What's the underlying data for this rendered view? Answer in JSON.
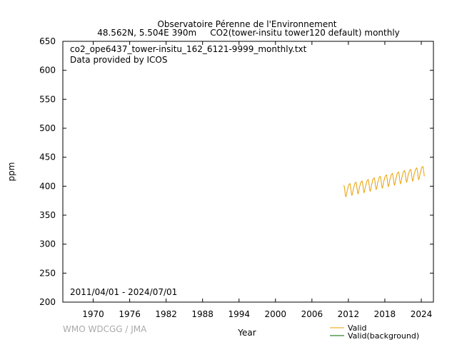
{
  "chart_data": {
    "type": "line",
    "title": "Observatoire Pérenne de l'Environnement",
    "subtitle": "48.562N, 5.504E 390m     CO2(tower-insitu tower120 default) monthly",
    "annotations": [
      "co2_ope6437_tower-insitu_162_6121-9999_monthly.txt",
      "Data provided by ICOS",
      "2011/04/01 - 2024/07/01"
    ],
    "credit": "WMO WDCGG / JMA",
    "xlabel": "Year",
    "ylabel": "ppm",
    "xlim": [
      1965,
      2026
    ],
    "xticks": [
      1970,
      1976,
      1982,
      1988,
      1994,
      2000,
      2006,
      2012,
      2018,
      2024
    ],
    "ylim": [
      200,
      650
    ],
    "yticks": [
      200,
      250,
      300,
      350,
      400,
      450,
      500,
      550,
      600,
      650
    ],
    "x": [
      2011.25,
      2011.33,
      2011.42,
      2011.5,
      2011.58,
      2011.67,
      2011.75,
      2011.83,
      2011.92,
      2012,
      2012.08,
      2012.17,
      2012.25,
      2012.33,
      2012.42,
      2012.5,
      2012.58,
      2012.67,
      2012.75,
      2012.83,
      2012.92,
      2013,
      2013.08,
      2013.17,
      2013.25,
      2013.33,
      2013.42,
      2013.5,
      2013.58,
      2013.67,
      2013.75,
      2013.83,
      2013.92,
      2014,
      2014.08,
      2014.17,
      2014.25,
      2014.33,
      2014.42,
      2014.5,
      2014.58,
      2014.67,
      2014.75,
      2014.83,
      2014.92,
      2015,
      2015.08,
      2015.17,
      2015.25,
      2015.33,
      2015.42,
      2015.5,
      2015.58,
      2015.67,
      2015.75,
      2015.83,
      2015.92,
      2016,
      2016.08,
      2016.17,
      2016.25,
      2016.33,
      2016.42,
      2016.5,
      2016.58,
      2016.67,
      2016.75,
      2016.83,
      2016.92,
      2017,
      2017.08,
      2017.17,
      2017.25,
      2017.33,
      2017.42,
      2017.5,
      2017.58,
      2017.67,
      2017.75,
      2017.83,
      2017.92,
      2018,
      2018.08,
      2018.17,
      2018.25,
      2018.33,
      2018.42,
      2018.5,
      2018.58,
      2018.67,
      2018.75,
      2018.83,
      2018.92,
      2019,
      2019.08,
      2019.17,
      2019.25,
      2019.33,
      2019.42,
      2019.5,
      2019.58,
      2019.67,
      2019.75,
      2019.83,
      2019.92,
      2020,
      2020.08,
      2020.17,
      2020.25,
      2020.33,
      2020.42,
      2020.5,
      2020.58,
      2020.67,
      2020.75,
      2020.83,
      2020.92,
      2021,
      2021.08,
      2021.17,
      2021.25,
      2021.33,
      2021.42,
      2021.5,
      2021.58,
      2021.67,
      2021.75,
      2021.83,
      2021.92,
      2022,
      2022.08,
      2022.17,
      2022.25,
      2022.33,
      2022.42,
      2022.5,
      2022.58,
      2022.67,
      2022.75,
      2022.83,
      2022.92,
      2023,
      2023.08,
      2023.17,
      2023.25,
      2023.33,
      2023.42,
      2023.5,
      2023.58,
      2023.67,
      2023.75,
      2023.83,
      2023.92,
      2024,
      2024.08,
      2024.17,
      2024.25,
      2024.33,
      2024.42,
      2024.5
    ],
    "series": [
      {
        "name": "Valid",
        "color": "#e8a000",
        "values": [
          402,
          399,
          392,
          385,
          382,
          384,
          389,
          394,
          396,
          400.5,
          402.5,
          403.5,
          404.5,
          401.5,
          394.5,
          387.5,
          384.5,
          386.5,
          391.5,
          396.5,
          398.5,
          403,
          405,
          406,
          407,
          404,
          397,
          390,
          387,
          389,
          394,
          399,
          401,
          405,
          407,
          408,
          409,
          406,
          399,
          392,
          389,
          391,
          396,
          401,
          403,
          407.5,
          409.5,
          410.5,
          411.5,
          408.5,
          401.5,
          394.5,
          391.5,
          393.5,
          398.5,
          403.5,
          405.5,
          410.5,
          412.5,
          413.5,
          414.5,
          411.5,
          404.5,
          397.5,
          394.5,
          396.5,
          401.5,
          406.5,
          408.5,
          413,
          415,
          416,
          417,
          414,
          407,
          400,
          397,
          399,
          404,
          409,
          411,
          415.5,
          417.5,
          418.5,
          419.5,
          416.5,
          409.5,
          402.5,
          399.5,
          401.5,
          406.5,
          411.5,
          413.5,
          418,
          420,
          421,
          422,
          419,
          412,
          405,
          402,
          404,
          409,
          414,
          416,
          420.5,
          422.5,
          423.5,
          424.5,
          421.5,
          414.5,
          407.5,
          404.5,
          406.5,
          411.5,
          416.5,
          418.5,
          423,
          425,
          426,
          427,
          424,
          417,
          410,
          407,
          409,
          414,
          419,
          421,
          425,
          427,
          428,
          429,
          426,
          419,
          412,
          409,
          411,
          416,
          421,
          423,
          427.5,
          429.5,
          430.5,
          431.5,
          428.5,
          421.5,
          414.5,
          411.5,
          413.5,
          418.5,
          423.5,
          425.5,
          430,
          432,
          433,
          434,
          431,
          424,
          417
        ]
      },
      {
        "name": "Valid(background)",
        "color": "#006400"
      }
    ]
  }
}
